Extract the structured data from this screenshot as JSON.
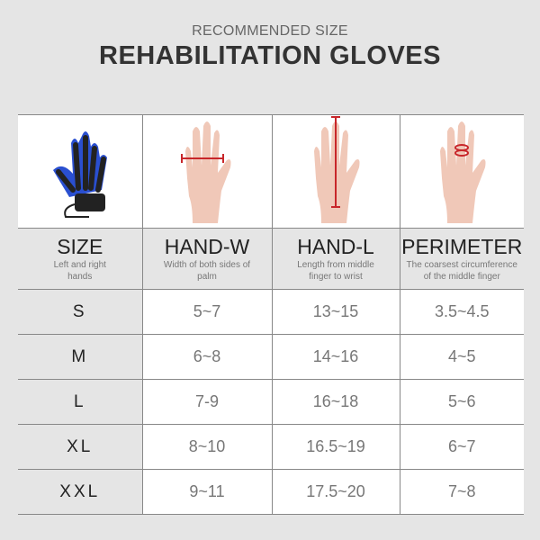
{
  "header": {
    "subtitle": "RECOMMENDED SIZE",
    "title": "REHABILITATION GLOVES"
  },
  "images": [
    {
      "icon": "robotic-glove-image"
    },
    {
      "icon": "hand-width-measure-image"
    },
    {
      "icon": "hand-length-measure-image"
    },
    {
      "icon": "finger-perimeter-measure-image"
    }
  ],
  "columns": [
    {
      "label": "SIZE",
      "desc": "Left and right hands"
    },
    {
      "label": "HAND-W",
      "desc": "Width of both sides of palm"
    },
    {
      "label": "HAND-L",
      "desc": "Length from middle finger to wrist"
    },
    {
      "label": "PERIMETER",
      "desc": "The coarsest circumference of the middle finger"
    }
  ],
  "rows": [
    [
      "S",
      "5~7",
      "13~15",
      "3.5~4.5"
    ],
    [
      "M",
      "6~8",
      "14~16",
      "4~5"
    ],
    [
      "L",
      "7-9",
      "16~18",
      "5~6"
    ],
    [
      "XL",
      "8~10",
      "16.5~19",
      "6~7"
    ],
    [
      "XXL",
      "9~11",
      "17.5~20",
      "7~8"
    ]
  ],
  "colors": {
    "glove": "#2a4fd0",
    "measure_line": "#c8262a",
    "background": "#e5e5e5"
  }
}
